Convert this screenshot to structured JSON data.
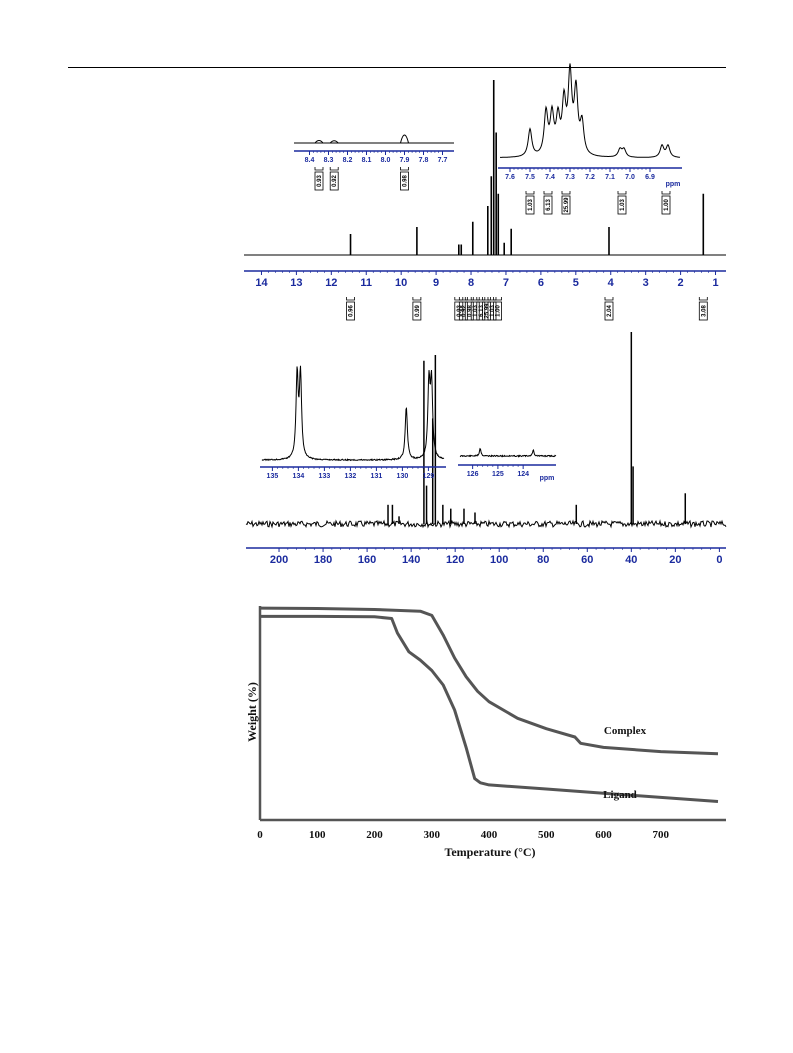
{
  "chart_data": [
    {
      "type": "line",
      "subtype": "1H-NMR spectrum",
      "title": "",
      "xlabel": "",
      "x_reversed": true,
      "xlim": [
        14.5,
        0.7
      ],
      "x_ticks": [
        "14",
        "13",
        "12",
        "11",
        "10",
        "9",
        "8",
        "7",
        "6",
        "5",
        "4",
        "3",
        "2",
        "1"
      ],
      "peaks": [
        {
          "x": 11.45,
          "height": 0.12
        },
        {
          "x": 9.55,
          "height": 0.16
        },
        {
          "x": 8.35,
          "height": 0.06
        },
        {
          "x": 8.28,
          "height": 0.06
        },
        {
          "x": 7.95,
          "height": 0.19
        },
        {
          "x": 7.52,
          "height": 0.28
        },
        {
          "x": 7.42,
          "height": 0.45
        },
        {
          "x": 7.35,
          "height": 1.0
        },
        {
          "x": 7.28,
          "height": 0.7
        },
        {
          "x": 7.22,
          "height": 0.35
        },
        {
          "x": 7.05,
          "height": 0.07
        },
        {
          "x": 6.85,
          "height": 0.15
        },
        {
          "x": 4.05,
          "height": 0.16
        },
        {
          "x": 1.35,
          "height": 0.35
        }
      ],
      "integrations": [
        {
          "x": 11.45,
          "label": "0.96"
        },
        {
          "x": 9.55,
          "label": "0.99"
        },
        {
          "x": 8.35,
          "label": "0.93"
        },
        {
          "x": 8.22,
          "label": "0.92"
        },
        {
          "x": 8.05,
          "label": "0.98"
        },
        {
          "x": 7.88,
          "label": "1.03"
        },
        {
          "x": 7.72,
          "label": "6.13"
        },
        {
          "x": 7.56,
          "label": "25.99"
        },
        {
          "x": 7.4,
          "label": "1.03"
        },
        {
          "x": 7.24,
          "label": "1.00"
        },
        {
          "x": 4.05,
          "label": "2.04"
        },
        {
          "x": 1.35,
          "label": "3.08"
        }
      ],
      "insets": [
        {
          "name": "downfield",
          "xlim": [
            8.45,
            7.65
          ],
          "x_ticks": [
            "8.4",
            "8.3",
            "8.2",
            "8.1",
            "8.0",
            "7.9",
            "7.8",
            "7.7"
          ],
          "peaks": [
            {
              "x": 8.35,
              "height": 0.25
            },
            {
              "x": 8.27,
              "height": 0.22
            },
            {
              "x": 7.9,
              "height": 0.8
            }
          ],
          "integrations": [
            {
              "x": 8.35,
              "label": "0.93"
            },
            {
              "x": 8.27,
              "label": "0.92"
            },
            {
              "x": 7.9,
              "label": "0.98"
            }
          ]
        },
        {
          "name": "aromatic",
          "xlim": [
            7.65,
            6.75
          ],
          "x_ticks": [
            "7.6",
            "7.5",
            "7.4",
            "7.3",
            "7.2",
            "7.1",
            "7.0",
            "6.9"
          ],
          "unit_label": "ppm",
          "peaks": [
            {
              "x": 7.5,
              "height": 0.35
            },
            {
              "x": 7.42,
              "height": 0.55
            },
            {
              "x": 7.39,
              "height": 0.5
            },
            {
              "x": 7.36,
              "height": 0.45
            },
            {
              "x": 7.33,
              "height": 0.65
            },
            {
              "x": 7.3,
              "height": 1.0
            },
            {
              "x": 7.27,
              "height": 0.8
            },
            {
              "x": 7.24,
              "height": 0.4
            },
            {
              "x": 7.05,
              "height": 0.1
            },
            {
              "x": 7.03,
              "height": 0.1
            },
            {
              "x": 6.84,
              "height": 0.15
            },
            {
              "x": 6.81,
              "height": 0.15
            }
          ],
          "integrations": [
            {
              "x": 7.5,
              "label": "1.03"
            },
            {
              "x": 7.41,
              "label": "6.13"
            },
            {
              "x": 7.32,
              "label": "25.99"
            },
            {
              "x": 7.04,
              "label": "1.03"
            },
            {
              "x": 6.82,
              "label": "1.00"
            }
          ]
        }
      ]
    },
    {
      "type": "line",
      "subtype": "13C-NMR spectrum",
      "title": "",
      "xlabel": "",
      "x_reversed": true,
      "xlim": [
        215,
        -3
      ],
      "x_ticks": [
        "200",
        "180",
        "160",
        "140",
        "120",
        "100",
        "80",
        "60",
        "40",
        "20",
        "0"
      ],
      "peaks": [
        {
          "x": 150.5,
          "height": 0.1
        },
        {
          "x": 148.5,
          "height": 0.1
        },
        {
          "x": 145.5,
          "height": 0.04
        },
        {
          "x": 134.2,
          "height": 0.85
        },
        {
          "x": 133.0,
          "height": 0.2
        },
        {
          "x": 130.2,
          "height": 0.55
        },
        {
          "x": 129.0,
          "height": 0.88
        },
        {
          "x": 125.6,
          "height": 0.1
        },
        {
          "x": 122.0,
          "height": 0.08
        },
        {
          "x": 116.0,
          "height": 0.08
        },
        {
          "x": 111.0,
          "height": 0.06
        },
        {
          "x": 65.0,
          "height": 0.1
        },
        {
          "x": 40.0,
          "height": 1.0
        },
        {
          "x": 39.2,
          "height": 0.3
        },
        {
          "x": 15.5,
          "height": 0.16
        }
      ],
      "insets": [
        {
          "name": "aromatic",
          "xlim": [
            135.4,
            128.4
          ],
          "x_ticks": [
            "135",
            "134",
            "133",
            "132",
            "131",
            "130",
            "129"
          ],
          "peaks": [
            {
              "x": 134.05,
              "height": 0.95
            },
            {
              "x": 133.92,
              "height": 0.95
            },
            {
              "x": 129.85,
              "height": 0.6
            },
            {
              "x": 128.98,
              "height": 0.85
            },
            {
              "x": 128.88,
              "height": 0.85
            }
          ]
        },
        {
          "name": "downfield",
          "xlim": [
            126.5,
            122.7
          ],
          "x_ticks": [
            "126",
            "125",
            "124"
          ],
          "unit_label": "ppm",
          "peaks": [
            {
              "x": 125.7,
              "height": 0.2
            },
            {
              "x": 123.6,
              "height": 0.15
            }
          ]
        }
      ]
    },
    {
      "type": "line",
      "subtype": "TGA curves",
      "title": "",
      "xlabel": "Temperature (°C)",
      "ylabel": "Weight (%)",
      "xlim": [
        0,
        800
      ],
      "x_ticks": [
        0,
        100,
        200,
        300,
        400,
        500,
        600,
        700
      ],
      "ylim": [
        0,
        100
      ],
      "series": [
        {
          "name": "Complex",
          "x": [
            0,
            100,
            200,
            280,
            300,
            320,
            340,
            360,
            380,
            400,
            450,
            500,
            550,
            560,
            600,
            700,
            800
          ],
          "y": [
            99,
            98.8,
            98.3,
            97.5,
            95.5,
            86,
            75,
            66,
            59,
            54,
            46,
            41,
            37,
            34,
            32,
            30,
            29
          ]
        },
        {
          "name": "Ligand",
          "x": [
            0,
            100,
            200,
            230,
            240,
            260,
            280,
            300,
            320,
            340,
            360,
            375,
            385,
            400,
            500,
            600,
            700,
            800
          ],
          "y": [
            95,
            95,
            94.8,
            94,
            87,
            78,
            74,
            69,
            62,
            50,
            32,
            17,
            15,
            14,
            12,
            10,
            8,
            6
          ]
        }
      ]
    }
  ]
}
